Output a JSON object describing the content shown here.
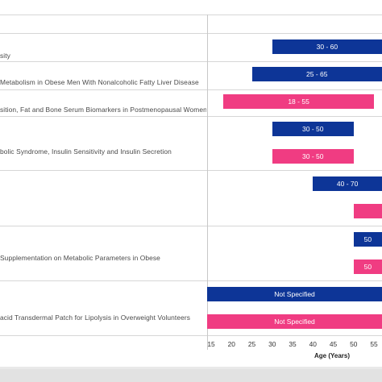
{
  "chart_data": {
    "type": "bar",
    "orientation": "horizontal",
    "xlabel": "Age (Years)",
    "xticks": [
      15,
      20,
      25,
      30,
      35,
      40,
      45,
      50,
      55
    ],
    "xlim": [
      15,
      57
    ],
    "rows": [
      {
        "label": "sity",
        "start": 30,
        "end": 60,
        "text": "30 - 60",
        "color": "blue"
      },
      {
        "label": " Metabolism in Obese Men With Nonalcoholic Fatty Liver Disease",
        "start": 25,
        "end": 65,
        "text": "25 - 65",
        "color": "blue"
      },
      {
        "label": "sition, Fat and Bone Serum Biomarkers in Postmenopausal Women",
        "start": 18,
        "end": 55,
        "text": "18 - 55",
        "color": "pink"
      },
      {
        "label": "",
        "start": 30,
        "end": 50,
        "text": "30 - 50",
        "color": "blue"
      },
      {
        "label": "bolic Syndrome, Insulin Sensitivity and Insulin Secretion",
        "start": 30,
        "end": 50,
        "text": "30 - 50",
        "color": "pink"
      },
      {
        "label": "",
        "start": 40,
        "end": 70,
        "text": "40 - 70",
        "color": "blue"
      },
      {
        "label": "",
        "start": 50,
        "end": 70,
        "text": "",
        "color": "pink"
      },
      {
        "label": "",
        "start": 50,
        "end": 70,
        "text": "50",
        "color": "blue"
      },
      {
        "label": " Supplementation on Metabolic Parameters in Obese",
        "start": 50,
        "end": 70,
        "text": "50",
        "color": "pink"
      },
      {
        "label": "",
        "start": 15,
        "end": 57,
        "text": "Not Specified",
        "color": "blue"
      },
      {
        "label": "acid Transdermal Patch for Lipolysis in Overweight Volunteers",
        "start": 15,
        "end": 57,
        "text": "Not Specified",
        "color": "pink"
      }
    ]
  },
  "colors": {
    "blue": "#0d3597",
    "pink": "#f03c82"
  }
}
